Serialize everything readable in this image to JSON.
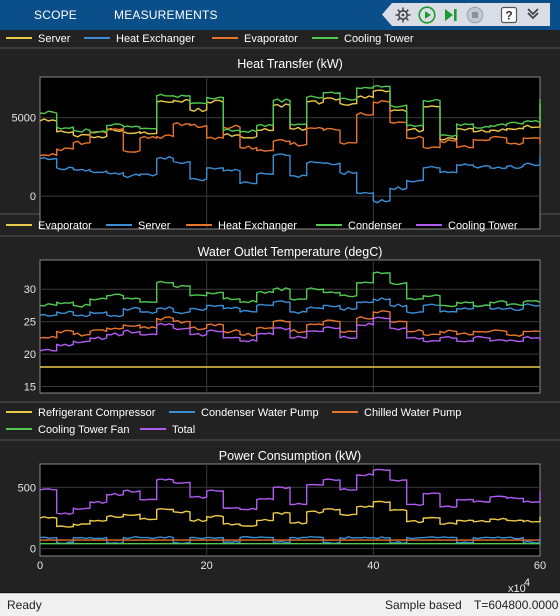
{
  "header": {
    "tabs": [
      {
        "label": "SCOPE"
      },
      {
        "label": "MEASUREMENTS"
      }
    ],
    "toolbar": {
      "icons": [
        "settings-icon",
        "run-icon",
        "step-forward-icon",
        "stop-icon",
        "help-icon",
        "expand-icon"
      ]
    }
  },
  "status": {
    "ready": "Ready",
    "mode": "Sample based",
    "time": "T=604800.0000"
  },
  "colors": {
    "yellow": "#edc948",
    "blue": "#3a8fd6",
    "orange": "#e8742c",
    "green": "#4fc94f",
    "purple": "#b05cf0"
  },
  "chart_data": [
    {
      "type": "line",
      "title": "Heat Transfer (kW)",
      "xlim": [
        0,
        60
      ],
      "ylim": [
        -2100,
        7600
      ],
      "yticks": [
        0,
        5000
      ],
      "series": [
        {
          "name": "Server",
          "color": "yellow",
          "x": [
            0,
            2,
            4,
            6,
            8,
            10,
            12,
            14,
            16,
            18,
            20,
            22,
            24,
            26,
            28,
            30,
            32,
            34,
            36,
            38,
            40,
            42,
            44,
            46,
            48,
            50,
            52,
            54,
            56,
            58,
            60
          ],
          "values": [
            4800,
            4100,
            3900,
            3800,
            4200,
            4100,
            4000,
            6000,
            6100,
            5500,
            6000,
            3900,
            3800,
            4200,
            5800,
            4300,
            6000,
            6200,
            5900,
            6300,
            6700,
            5400,
            4200,
            5700,
            3600,
            4300,
            4100,
            4200,
            4300,
            4400,
            5900
          ]
        },
        {
          "name": "Heat Exchanger",
          "color": "blue",
          "x": [
            0,
            2,
            4,
            6,
            8,
            10,
            12,
            14,
            16,
            18,
            20,
            22,
            24,
            26,
            28,
            30,
            32,
            34,
            36,
            38,
            40,
            42,
            44,
            46,
            48,
            50,
            52,
            54,
            56,
            58,
            60
          ],
          "values": [
            2400,
            1800,
            1700,
            1600,
            1500,
            1300,
            1400,
            2400,
            2200,
            1100,
            1800,
            1600,
            800,
            1400,
            2600,
            1300,
            2100,
            2100,
            1500,
            200,
            -300,
            500,
            1000,
            1800,
            1500,
            2000,
            1900,
            1800,
            1900,
            2000,
            2600
          ]
        },
        {
          "name": "Evaporator",
          "color": "orange",
          "x": [
            0,
            2,
            4,
            6,
            8,
            10,
            12,
            14,
            16,
            18,
            20,
            22,
            24,
            26,
            28,
            30,
            32,
            34,
            36,
            38,
            40,
            42,
            44,
            46,
            48,
            50,
            52,
            54,
            56,
            58,
            60
          ],
          "values": [
            2600,
            3000,
            3400,
            4000,
            4300,
            2900,
            3700,
            3800,
            4600,
            4500,
            3700,
            4400,
            3100,
            2900,
            3500,
            3300,
            4300,
            4200,
            3400,
            5200,
            6000,
            4700,
            3700,
            3100,
            3500,
            3100,
            3600,
            3700,
            3400,
            3700,
            3300
          ]
        },
        {
          "name": "Cooling Tower",
          "color": "green",
          "x": [
            0,
            2,
            4,
            6,
            8,
            10,
            12,
            14,
            16,
            18,
            20,
            22,
            24,
            26,
            28,
            30,
            32,
            34,
            36,
            38,
            40,
            42,
            44,
            46,
            48,
            50,
            52,
            54,
            56,
            58,
            60
          ],
          "values": [
            5300,
            4400,
            4200,
            4100,
            4500,
            4400,
            4300,
            6400,
            6400,
            5900,
            6300,
            4200,
            4100,
            4500,
            6100,
            4600,
            6300,
            6600,
            6200,
            6900,
            7000,
            5800,
            4500,
            6100,
            3900,
            4600,
            4400,
            4500,
            4600,
            4700,
            6200
          ]
        }
      ]
    },
    {
      "type": "line",
      "title": "Water Outlet Temperature (degC)",
      "xlim": [
        0,
        60
      ],
      "ylim": [
        14,
        34.5
      ],
      "yticks": [
        15,
        20,
        25,
        30
      ],
      "series": [
        {
          "name": "Evaporator",
          "color": "yellow",
          "x": [
            0,
            60
          ],
          "values": [
            18,
            18
          ]
        },
        {
          "name": "Server",
          "color": "blue",
          "x": [
            0,
            2,
            4,
            6,
            8,
            10,
            12,
            14,
            16,
            18,
            20,
            22,
            24,
            26,
            28,
            30,
            32,
            34,
            36,
            38,
            40,
            42,
            44,
            46,
            48,
            50,
            52,
            54,
            56,
            58,
            60
          ],
          "values": [
            26,
            26.5,
            26,
            26.5,
            26,
            27,
            26.5,
            27,
            26.5,
            27,
            27.5,
            27,
            26.5,
            27.5,
            28,
            26.5,
            27,
            27.5,
            27,
            28,
            28.5,
            27.5,
            26.5,
            27.5,
            26.5,
            27,
            27.5,
            27,
            27,
            27.5,
            27.5
          ]
        },
        {
          "name": "Heat Exchanger",
          "color": "orange",
          "x": [
            0,
            2,
            4,
            6,
            8,
            10,
            12,
            14,
            16,
            18,
            20,
            22,
            24,
            26,
            28,
            30,
            32,
            34,
            36,
            38,
            40,
            42,
            44,
            46,
            48,
            50,
            52,
            54,
            56,
            58,
            60
          ],
          "values": [
            22.5,
            23.5,
            23,
            23.5,
            24,
            24.5,
            24,
            25.5,
            25,
            24,
            24.5,
            23.5,
            23,
            24,
            25,
            23.5,
            24.5,
            25,
            23.5,
            25.5,
            26.5,
            25,
            23.5,
            23,
            23.5,
            23,
            23.5,
            23.5,
            23,
            23.5,
            23.5
          ]
        },
        {
          "name": "Condenser",
          "color": "green",
          "x": [
            0,
            2,
            4,
            6,
            8,
            10,
            12,
            14,
            16,
            18,
            20,
            22,
            24,
            26,
            28,
            30,
            32,
            34,
            36,
            38,
            40,
            42,
            44,
            46,
            48,
            50,
            52,
            54,
            56,
            58,
            60
          ],
          "values": [
            27.5,
            28,
            27.5,
            28.5,
            29,
            28.5,
            28,
            31,
            30.5,
            29,
            29.5,
            28.5,
            28,
            29.5,
            30,
            28.5,
            30,
            29.5,
            29,
            31,
            32.5,
            31,
            28.5,
            29,
            27.5,
            28,
            27.5,
            28,
            27.5,
            28,
            28
          ]
        },
        {
          "name": "Cooling Tower",
          "color": "purple",
          "x": [
            0,
            2,
            4,
            6,
            8,
            10,
            12,
            14,
            16,
            18,
            20,
            22,
            24,
            26,
            28,
            30,
            32,
            34,
            36,
            38,
            40,
            42,
            44,
            46,
            48,
            50,
            52,
            54,
            56,
            58,
            60
          ],
          "values": [
            20.5,
            21.5,
            22,
            22.5,
            23,
            23.5,
            23,
            24.5,
            24,
            23,
            23.5,
            22.5,
            22,
            23,
            24,
            22.5,
            23.5,
            24,
            22.5,
            24.5,
            25.5,
            24,
            22.5,
            22,
            22.5,
            22,
            22.5,
            22,
            22,
            22.5,
            22
          ]
        }
      ]
    },
    {
      "type": "line",
      "title": "Power Consumption (kW)",
      "xlim": [
        0,
        60
      ],
      "ylim": [
        -60,
        690
      ],
      "yticks": [
        0,
        500
      ],
      "xticks": [
        0,
        20,
        40,
        60
      ],
      "xexponent": "x10",
      "xexponent_power": "4",
      "series": [
        {
          "name": "Refrigerant Compressor",
          "color": "yellow",
          "x": [
            0,
            2,
            4,
            6,
            8,
            10,
            12,
            14,
            16,
            18,
            20,
            22,
            24,
            26,
            28,
            30,
            32,
            34,
            36,
            38,
            40,
            42,
            44,
            46,
            48,
            50,
            52,
            54,
            56,
            58,
            60
          ],
          "values": [
            250,
            180,
            200,
            230,
            260,
            280,
            240,
            320,
            300,
            230,
            260,
            200,
            190,
            230,
            290,
            210,
            300,
            320,
            280,
            340,
            380,
            310,
            220,
            250,
            200,
            230,
            220,
            240,
            230,
            220,
            260
          ]
        },
        {
          "name": "Condenser Water Pump",
          "color": "blue",
          "x": [
            0,
            2,
            4,
            6,
            8,
            10,
            12,
            14,
            16,
            18,
            20,
            22,
            24,
            26,
            28,
            30,
            32,
            34,
            36,
            38,
            40,
            42,
            44,
            46,
            48,
            50,
            52,
            54,
            56,
            58,
            60
          ],
          "values": [
            90,
            50,
            90,
            90,
            50,
            90,
            90,
            90,
            50,
            90,
            90,
            50,
            90,
            90,
            50,
            90,
            90,
            50,
            90,
            90,
            90,
            50,
            90,
            90,
            90,
            50,
            90,
            90,
            90,
            50,
            90
          ]
        },
        {
          "name": "Chilled Water Pump",
          "color": "orange",
          "x": [
            0,
            60
          ],
          "values": [
            70,
            70
          ]
        },
        {
          "name": "Cooling Tower Fan",
          "color": "green",
          "x": [
            0,
            60
          ],
          "values": [
            40,
            40
          ]
        },
        {
          "name": "Total",
          "color": "purple",
          "x": [
            0,
            2,
            4,
            6,
            8,
            10,
            12,
            14,
            16,
            18,
            20,
            22,
            24,
            26,
            28,
            30,
            32,
            34,
            36,
            38,
            40,
            42,
            44,
            46,
            48,
            50,
            52,
            54,
            56,
            58,
            60
          ],
          "values": [
            480,
            290,
            330,
            380,
            440,
            470,
            400,
            560,
            540,
            420,
            470,
            330,
            320,
            400,
            500,
            360,
            520,
            560,
            480,
            600,
            640,
            560,
            360,
            450,
            340,
            400,
            380,
            420,
            410,
            380,
            470
          ]
        }
      ]
    }
  ]
}
